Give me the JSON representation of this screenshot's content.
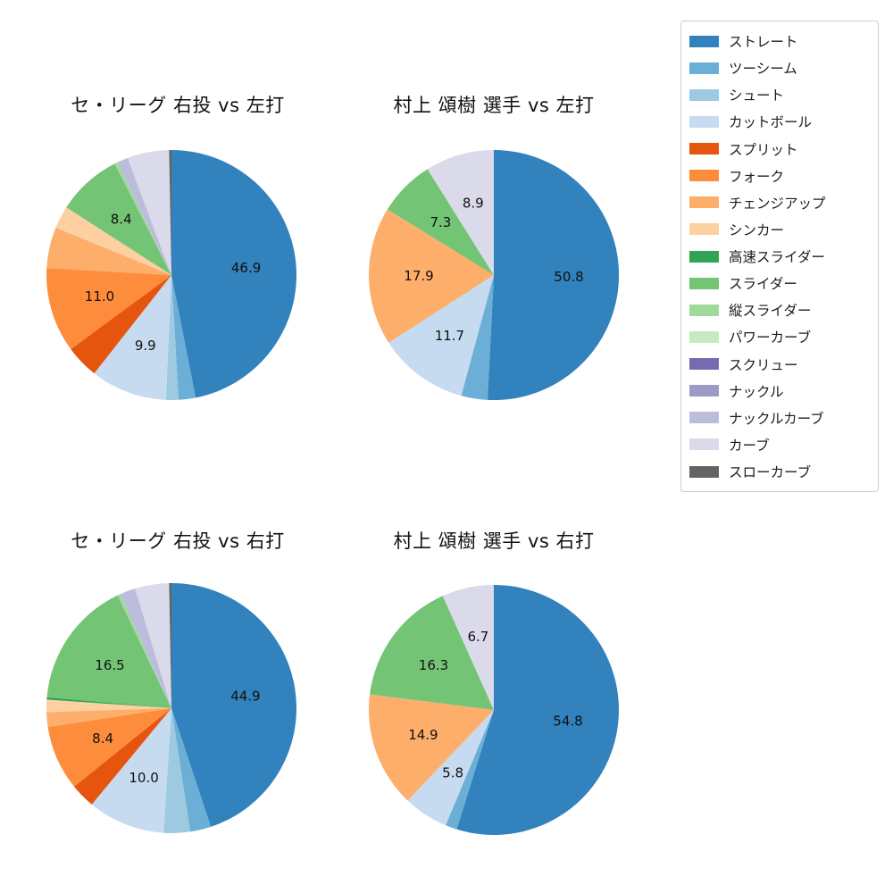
{
  "chart_data": [
    {
      "type": "pie",
      "title": "セ・リーグ 右投 vs 左打",
      "start_angle": "12-oclock",
      "direction": "clockwise",
      "value_unit": "percent",
      "label_distance": 0.6,
      "slices": [
        {
          "name": "ストレート",
          "value": 46.9,
          "label": "46.9"
        },
        {
          "name": "ツーシーム",
          "value": 2.2
        },
        {
          "name": "シュート",
          "value": 1.6
        },
        {
          "name": "カットボール",
          "value": 9.9,
          "label": "9.9"
        },
        {
          "name": "スプリット",
          "value": 4.3
        },
        {
          "name": "フォーク",
          "value": 11.0,
          "label": "11.0"
        },
        {
          "name": "チェンジアップ",
          "value": 5.3
        },
        {
          "name": "シンカー",
          "value": 2.9
        },
        {
          "name": "スライダー",
          "value": 8.4,
          "label": "8.4"
        },
        {
          "name": "縦スライダー",
          "value": 0.4
        },
        {
          "name": "ナックルカーブ",
          "value": 1.4
        },
        {
          "name": "カーブ",
          "value": 5.4
        },
        {
          "name": "スローカーブ",
          "value": 0.3
        }
      ]
    },
    {
      "type": "pie",
      "title": "村上 頌樹 選手 vs 左打",
      "start_angle": "12-oclock",
      "direction": "clockwise",
      "value_unit": "percent",
      "label_distance": 0.6,
      "slices": [
        {
          "name": "ストレート",
          "value": 50.8,
          "label": "50.8"
        },
        {
          "name": "ツーシーム",
          "value": 3.4
        },
        {
          "name": "カットボール",
          "value": 11.7,
          "label": "11.7"
        },
        {
          "name": "チェンジアップ",
          "value": 17.9,
          "label": "17.9"
        },
        {
          "name": "スライダー",
          "value": 7.3,
          "label": "7.3"
        },
        {
          "name": "カーブ",
          "value": 8.9,
          "label": "8.9"
        }
      ]
    },
    {
      "type": "pie",
      "title": "セ・リーグ 右投 vs 右打",
      "start_angle": "12-oclock",
      "direction": "clockwise",
      "value_unit": "percent",
      "label_distance": 0.6,
      "slices": [
        {
          "name": "ストレート",
          "value": 44.9,
          "label": "44.9"
        },
        {
          "name": "ツーシーム",
          "value": 2.7
        },
        {
          "name": "シュート",
          "value": 3.4
        },
        {
          "name": "カットボール",
          "value": 10.0,
          "label": "10.0"
        },
        {
          "name": "スプリット",
          "value": 3.2
        },
        {
          "name": "フォーク",
          "value": 8.4,
          "label": "8.4"
        },
        {
          "name": "チェンジアップ",
          "value": 1.9
        },
        {
          "name": "シンカー",
          "value": 1.6
        },
        {
          "name": "高速スライダー",
          "value": 0.3
        },
        {
          "name": "スライダー",
          "value": 16.5,
          "label": "16.5"
        },
        {
          "name": "縦スライダー",
          "value": 0.4
        },
        {
          "name": "ナックルカーブ",
          "value": 2.0
        },
        {
          "name": "カーブ",
          "value": 4.4
        },
        {
          "name": "スローカーブ",
          "value": 0.3
        }
      ]
    },
    {
      "type": "pie",
      "title": "村上 頌樹 選手 vs 右打",
      "start_angle": "12-oclock",
      "direction": "clockwise",
      "value_unit": "percent",
      "label_distance": 0.6,
      "slices": [
        {
          "name": "ストレート",
          "value": 54.8,
          "label": "54.8"
        },
        {
          "name": "ツーシーム",
          "value": 1.5
        },
        {
          "name": "カットボール",
          "value": 5.8,
          "label": "5.8"
        },
        {
          "name": "チェンジアップ",
          "value": 14.9,
          "label": "14.9"
        },
        {
          "name": "スライダー",
          "value": 16.3,
          "label": "16.3"
        },
        {
          "name": "カーブ",
          "value": 6.7,
          "label": "6.7"
        }
      ]
    }
  ],
  "legend": {
    "position": "right",
    "items": [
      {
        "label": "ストレート",
        "color": "#3182bd"
      },
      {
        "label": "ツーシーム",
        "color": "#6baed6"
      },
      {
        "label": "シュート",
        "color": "#9ecae1"
      },
      {
        "label": "カットボール",
        "color": "#c6dbef"
      },
      {
        "label": "スプリット",
        "color": "#e6550d"
      },
      {
        "label": "フォーク",
        "color": "#fd8d3c"
      },
      {
        "label": "チェンジアップ",
        "color": "#fdae6b"
      },
      {
        "label": "シンカー",
        "color": "#fdd0a2"
      },
      {
        "label": "高速スライダー",
        "color": "#31a354"
      },
      {
        "label": "スライダー",
        "color": "#74c476"
      },
      {
        "label": "縦スライダー",
        "color": "#a1d99b"
      },
      {
        "label": "パワーカーブ",
        "color": "#c7e9c0"
      },
      {
        "label": "スクリュー",
        "color": "#756bb1"
      },
      {
        "label": "ナックル",
        "color": "#9e9ac8"
      },
      {
        "label": "ナックルカーブ",
        "color": "#bcbddc"
      },
      {
        "label": "カーブ",
        "color": "#dadaeb"
      },
      {
        "label": "スローカーブ",
        "color": "#636363"
      }
    ]
  }
}
